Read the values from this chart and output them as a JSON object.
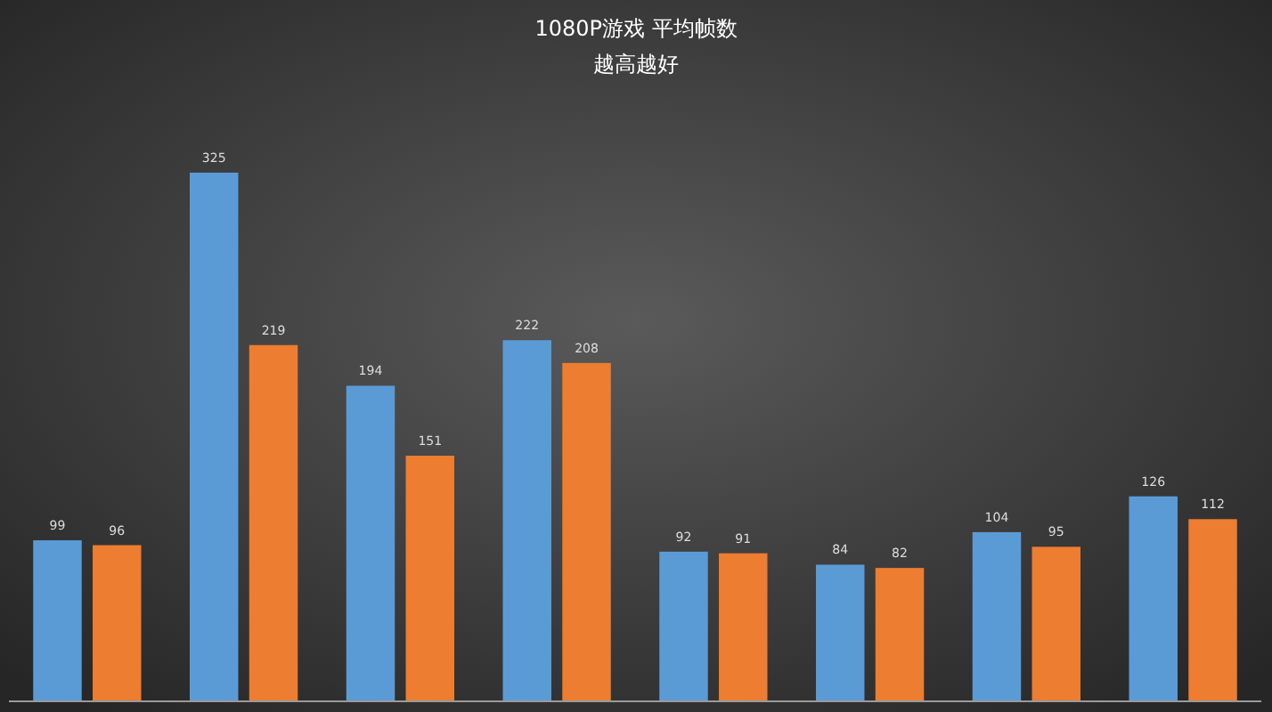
{
  "chart_data": {
    "type": "bar",
    "title": "1080P游戏 平均帧数",
    "subtitle": "越高越好",
    "categories": [
      null,
      null,
      null,
      null,
      null,
      null,
      null,
      null
    ],
    "series": [
      {
        "color": "#5b9bd5",
        "values": [
          99,
          325,
          194,
          222,
          92,
          84,
          104,
          126
        ]
      },
      {
        "color": "#ed7d31",
        "values": [
          96,
          219,
          151,
          208,
          91,
          82,
          95,
          112
        ]
      }
    ],
    "data_labels": true
  }
}
